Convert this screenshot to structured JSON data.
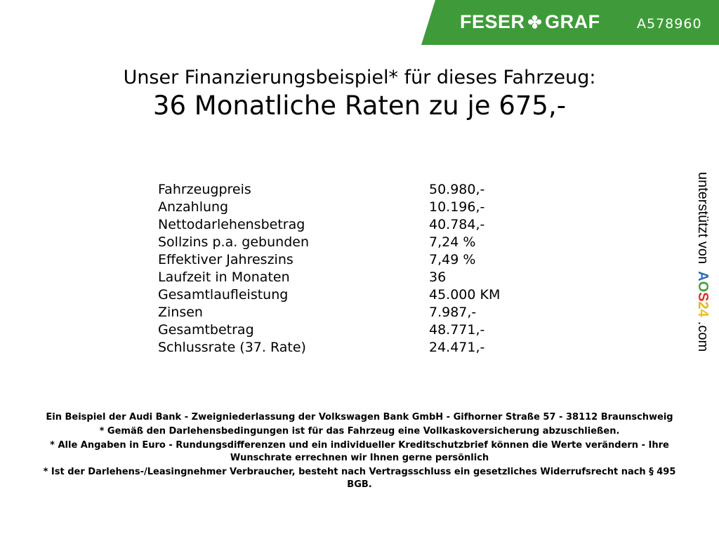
{
  "header": {
    "brand": "FESER",
    "brand2": "GRAF",
    "logo_icon": "clover-icon",
    "code": "A578960",
    "color": "#3f9b3a"
  },
  "title": "Unser Finanzierungsbeispiel* für dieses Fahrzeug:",
  "subtitle": "36 Monatliche Raten zu je 675,-",
  "rows": [
    {
      "label": "Fahrzeugpreis",
      "value": "50.980,-"
    },
    {
      "label": "Anzahlung",
      "value": "10.196,-"
    },
    {
      "label": "Nettodarlehensbetrag",
      "value": "40.784,-"
    },
    {
      "label": "Sollzins p.a. gebunden",
      "value": "7,24 %"
    },
    {
      "label": "Effektiver Jahreszins",
      "value": "7,49 %"
    },
    {
      "label": "Laufzeit in Monaten",
      "value": "36"
    },
    {
      "label": "Gesamtlaufleistung",
      "value": "45.000 KM"
    },
    {
      "label": "Zinsen",
      "value": "7.987,-"
    },
    {
      "label": "Gesamtbetrag",
      "value": "48.771,-"
    },
    {
      "label": "Schlussrate (37. Rate)",
      "value": "24.471,-"
    }
  ],
  "side": {
    "text": "unterstützt von",
    "aos": [
      "A",
      "O",
      "S",
      "2",
      "4"
    ],
    "com": ".com"
  },
  "footer": [
    "Ein Beispiel der Audi Bank - Zweigniederlassung der Volkswagen Bank GmbH - Gifhorner Straße 57 - 38112 Braunschweig",
    "* Gemäß den Darlehensbedingungen ist für das Fahrzeug eine Vollkaskoversicherung abzuschließen.",
    "* Alle Angaben in Euro - Rundungsdifferenzen und ein individueller Kreditschutzbrief können die Werte verändern - Ihre Wunschrate errechnen wir Ihnen gerne persönlich",
    "* Ist der Darlehens-/Leasingnehmer Verbraucher, besteht nach Vertragsschluss ein gesetzliches Widerrufsrecht nach § 495 BGB."
  ]
}
